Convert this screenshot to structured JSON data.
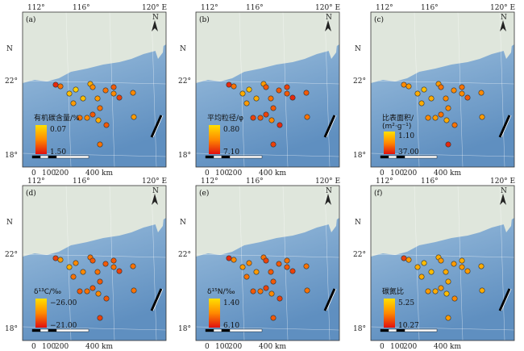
{
  "axes": {
    "x_ticks": [
      "112°",
      "116°",
      "120° E"
    ],
    "y_ticks": [
      "N",
      "22°",
      "18°"
    ],
    "scale": [
      "0",
      "100",
      "200",
      "400 km"
    ]
  },
  "colors": {
    "low": "#ffe000",
    "mid": "#ff8a00",
    "high": "#e01010",
    "land": "#dfe6dc",
    "sea_light": "#a9c9e4",
    "sea_deep": "#5f8fc0"
  },
  "panels": [
    {
      "label": "(a)",
      "legend_title": "有机碳含量/%",
      "legend_max": "0.07",
      "legend_min": "1.50",
      "stations": [
        0.9,
        0.6,
        0.2,
        0.1,
        0.4,
        0.2,
        0.3,
        0.5,
        0.4,
        0.6,
        0.7,
        0.5,
        0.8,
        0.6,
        0.7,
        0.3,
        0.6,
        0.5,
        0.7,
        0.6,
        0.4,
        0.5
      ]
    },
    {
      "label": "(b)",
      "legend_title": "平均粒径/φ",
      "legend_max": "0.80",
      "legend_min": "7.10",
      "stations": [
        0.9,
        0.6,
        0.3,
        0.2,
        0.4,
        0.3,
        0.4,
        0.7,
        0.6,
        0.7,
        0.8,
        0.7,
        0.9,
        0.7,
        0.8,
        0.5,
        0.8,
        0.7,
        0.9,
        0.8,
        0.6,
        0.7
      ]
    },
    {
      "label": "(c)",
      "legend_title": "比表面积/",
      "legend_title2": "(m²·g⁻¹)",
      "legend_max": "1.10",
      "legend_min": "37.00",
      "stations": [
        0.5,
        0.4,
        0.3,
        0.2,
        0.3,
        0.3,
        0.4,
        0.6,
        0.5,
        0.5,
        0.6,
        0.5,
        0.7,
        0.5,
        0.6,
        0.3,
        0.5,
        0.4,
        0.6,
        0.9,
        0.4,
        0.5
      ]
    },
    {
      "label": "(d)",
      "legend_title": "δ¹³C/‰",
      "legend_max": "−26.00",
      "legend_min": "−21.00",
      "stations": [
        0.8,
        0.4,
        0.3,
        0.5,
        0.6,
        0.5,
        0.6,
        0.7,
        0.6,
        0.7,
        0.7,
        0.6,
        0.8,
        0.7,
        0.7,
        0.5,
        0.7,
        0.6,
        0.7,
        0.8,
        0.6,
        0.6
      ]
    },
    {
      "label": "(e)",
      "legend_title": "δ¹⁵N/‰",
      "legend_max": "1.40",
      "legend_min": "6.10",
      "stations": [
        0.9,
        0.5,
        0.4,
        0.5,
        0.6,
        0.4,
        0.6,
        0.8,
        0.7,
        0.7,
        0.6,
        0.7,
        0.8,
        0.7,
        0.8,
        0.5,
        0.7,
        0.6,
        0.8,
        0.7,
        0.6,
        0.6
      ]
    },
    {
      "label": "(f)",
      "legend_title": "碳氮比",
      "legend_max": "5.25",
      "legend_min": "10.27",
      "stations": [
        0.8,
        0.4,
        0.3,
        0.2,
        0.3,
        0.2,
        0.3,
        0.4,
        0.3,
        0.4,
        0.3,
        0.4,
        0.4,
        0.3,
        0.4,
        0.2,
        0.4,
        0.3,
        0.5,
        0.4,
        0.3,
        0.3
      ]
    }
  ]
}
